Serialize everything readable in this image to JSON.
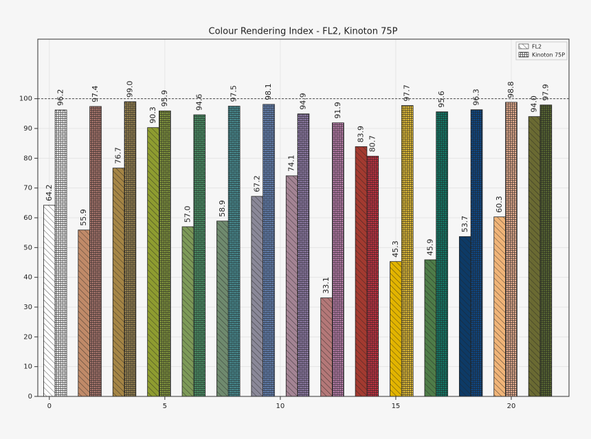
{
  "chart_data": {
    "type": "bar",
    "title": "Colour Rendering Index - FL2, Kinoton 75P",
    "x": [
      0,
      1.5,
      3,
      4.5,
      6,
      7.5,
      9,
      10.5,
      12,
      13.5,
      15,
      16.5,
      18,
      19.5,
      21
    ],
    "series": [
      {
        "name": "FL2",
        "colors": [
          "#ffffff",
          "#c08a68",
          "#a58545",
          "#8e9c30",
          "#7d9a58",
          "#6f8a6e",
          "#8a8898",
          "#a48494",
          "#b47878",
          "#a33a30",
          "#e2b400",
          "#4e7c48",
          "#0d3a66",
          "#f0b478",
          "#6a6a32"
        ],
        "values": [
          64.2,
          55.9,
          76.7,
          90.3,
          57.0,
          58.9,
          67.2,
          74.1,
          33.1,
          83.9,
          45.3,
          45.9,
          53.7,
          60.3,
          94.0
        ],
        "value_labels": [
          "64.2",
          "55.9",
          "76.7",
          "90.3",
          "57.0",
          "58.9",
          "67.2",
          "74.1",
          "33.1",
          "83.9",
          "45.3",
          "45.9",
          "53.7",
          "60.3",
          "94.0"
        ]
      },
      {
        "name": "Kinoton 75P",
        "colors": [
          "#ffffff",
          "#b67e74",
          "#a08a54",
          "#8aa040",
          "#4f9a6c",
          "#4d9aa0",
          "#6c8cc2",
          "#9a84b4",
          "#c484b4",
          "#d03444",
          "#f0c838",
          "#12806c",
          "#0c4a8c",
          "#f0b494",
          "#5a6a32"
        ],
        "values": [
          96.2,
          97.4,
          99.0,
          95.9,
          94.6,
          97.5,
          98.1,
          94.9,
          91.9,
          80.7,
          97.7,
          95.6,
          96.3,
          98.8,
          97.9
        ],
        "value_labels": [
          "96.2",
          "97.4",
          "99.0",
          "95.9",
          "94.6",
          "97.5",
          "98.1",
          "94.9",
          "91.9",
          "80.7",
          "97.7",
          "95.6",
          "96.3",
          "98.8",
          "97.9"
        ]
      }
    ],
    "xlim": [
      -0.5,
      22.5
    ],
    "xticks": [
      0,
      5,
      10,
      15,
      20
    ],
    "ylim": [
      0,
      120
    ],
    "yticks": [
      0,
      10,
      20,
      30,
      40,
      50,
      60,
      70,
      80,
      90,
      100
    ],
    "reference_line": 100,
    "grid": true,
    "legend": "upper right"
  }
}
